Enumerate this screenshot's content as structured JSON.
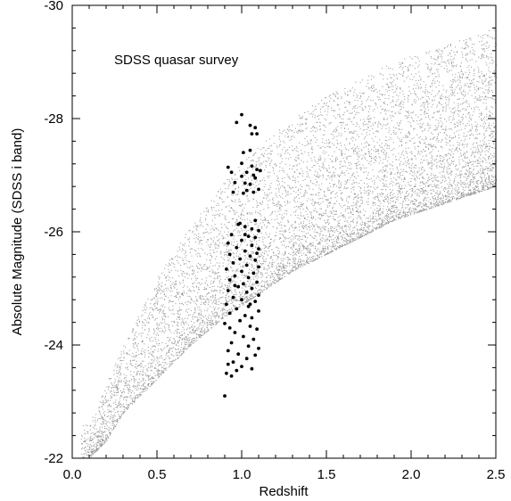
{
  "chart_data": {
    "type": "scatter",
    "title": "",
    "annotation": "SDSS quasar survey",
    "xlabel": "Redshift",
    "ylabel": "Absolute Magnitude (SDSS i band)",
    "xlim": [
      0.0,
      2.5
    ],
    "ylim": [
      -22,
      -30
    ],
    "y_axis_reversed": true,
    "grid": false,
    "x_ticks": [
      "0.0",
      "0.5",
      "1.0",
      "1.5",
      "2.0",
      "2.5"
    ],
    "y_ticks": [
      "-22",
      "-24",
      "-26",
      "-28",
      "-30"
    ],
    "series": [
      {
        "color": "#9a9a9a",
        "marker": "tiny dot",
        "description_curve": {
          "z": [
            0.1,
            0.2,
            0.3,
            0.5,
            0.7,
            0.9,
            1.1,
            1.3,
            1.5,
            1.7,
            1.9,
            2.1,
            2.3,
            2.5
          ],
          "faint_limit": [
            -22.0,
            -22.3,
            -22.8,
            -23.4,
            -24.0,
            -24.5,
            -24.9,
            -25.3,
            -25.6,
            -25.9,
            -26.2,
            -26.4,
            -26.6,
            -26.8
          ],
          "bright_edge": [
            -22.6,
            -23.3,
            -24.0,
            -25.2,
            -26.1,
            -26.9,
            -27.5,
            -28.0,
            -28.4,
            -28.7,
            -29.0,
            -29.2,
            -29.4,
            -29.6
          ]
        },
        "approx_points": 25000
      },
      {
        "color": "#000000",
        "marker": "filled circle",
        "z_range": [
          0.9,
          1.1
        ],
        "values": [
          [
            1.0,
            -28.07
          ],
          [
            0.97,
            -27.93
          ],
          [
            1.05,
            -27.88
          ],
          [
            1.08,
            -27.84
          ],
          [
            1.06,
            -27.73
          ],
          [
            1.09,
            -27.73
          ],
          [
            1.01,
            -27.4
          ],
          [
            1.05,
            -27.44
          ],
          [
            1.0,
            -27.21
          ],
          [
            1.06,
            -27.16
          ],
          [
            0.92,
            -27.14
          ],
          [
            1.09,
            -27.1
          ],
          [
            1.11,
            -27.08
          ],
          [
            0.94,
            -27.05
          ],
          [
            1.03,
            -27.05
          ],
          [
            1.07,
            -27.0
          ],
          [
            1.0,
            -26.98
          ],
          [
            1.08,
            -26.95
          ],
          [
            0.96,
            -26.87
          ],
          [
            1.02,
            -26.86
          ],
          [
            1.05,
            -26.84
          ],
          [
            1.03,
            -26.73
          ],
          [
            0.95,
            -26.7
          ],
          [
            1.07,
            -26.7
          ],
          [
            1.01,
            -26.68
          ],
          [
            1.1,
            -26.75
          ],
          [
            1.08,
            -26.2
          ],
          [
            0.98,
            -26.13
          ],
          [
            1.02,
            -26.09
          ],
          [
            1.06,
            -26.05
          ],
          [
            1.1,
            -26.02
          ],
          [
            0.94,
            -25.95
          ],
          [
            1.04,
            -25.92
          ],
          [
            1.08,
            -25.9
          ],
          [
            1.0,
            -25.85
          ],
          [
            0.92,
            -25.8
          ],
          [
            1.06,
            -25.76
          ],
          [
            0.97,
            -25.72
          ],
          [
            1.1,
            -25.7
          ],
          [
            1.02,
            -25.66
          ],
          [
            0.93,
            -25.6
          ],
          [
            1.05,
            -25.57
          ],
          [
            0.99,
            -25.52
          ],
          [
            1.08,
            -25.5
          ],
          [
            0.95,
            -25.45
          ],
          [
            1.03,
            -25.41
          ],
          [
            1.1,
            -25.38
          ],
          [
            0.91,
            -25.34
          ],
          [
            1.0,
            -25.3
          ],
          [
            1.07,
            -25.27
          ],
          [
            0.96,
            -25.22
          ],
          [
            1.04,
            -25.19
          ],
          [
            0.93,
            -25.15
          ],
          [
            1.09,
            -25.11
          ],
          [
            1.01,
            -25.08
          ],
          [
            0.98,
            -25.03
          ],
          [
            1.06,
            -25.0
          ],
          [
            0.92,
            -24.96
          ],
          [
            1.03,
            -24.93
          ],
          [
            1.1,
            -24.88
          ],
          [
            0.95,
            -24.84
          ],
          [
            1.0,
            -24.8
          ],
          [
            1.08,
            -24.77
          ],
          [
            0.91,
            -24.72
          ],
          [
            1.04,
            -24.68
          ],
          [
            0.97,
            -24.64
          ],
          [
            1.1,
            -24.6
          ],
          [
            0.93,
            -24.56
          ],
          [
            1.02,
            -24.52
          ],
          [
            1.06,
            -24.48
          ],
          [
            0.99,
            -24.43
          ],
          [
            0.9,
            -24.38
          ],
          [
            1.05,
            -24.33
          ],
          [
            1.09,
            -24.28
          ],
          [
            0.96,
            -24.22
          ],
          [
            1.01,
            -24.15
          ],
          [
            1.07,
            -24.1
          ],
          [
            0.94,
            -24.04
          ],
          [
            1.04,
            -23.98
          ],
          [
            1.1,
            -23.94
          ],
          [
            0.92,
            -23.9
          ],
          [
            0.98,
            -23.84
          ],
          [
            1.03,
            -23.76
          ],
          [
            0.95,
            -23.7
          ],
          [
            0.92,
            -23.66
          ],
          [
            1.0,
            -23.62
          ],
          [
            1.06,
            -23.58
          ],
          [
            0.97,
            -23.55
          ],
          [
            0.91,
            -23.5
          ],
          [
            0.94,
            -23.45
          ],
          [
            0.9,
            -23.1
          ],
          [
            1.02,
            -25.95
          ],
          [
            0.99,
            -26.15
          ],
          [
            1.09,
            -25.62
          ],
          [
            0.96,
            -25.05
          ],
          [
            1.05,
            -24.72
          ],
          [
            0.93,
            -24.3
          ],
          [
            1.08,
            -23.82
          ]
        ]
      }
    ]
  }
}
